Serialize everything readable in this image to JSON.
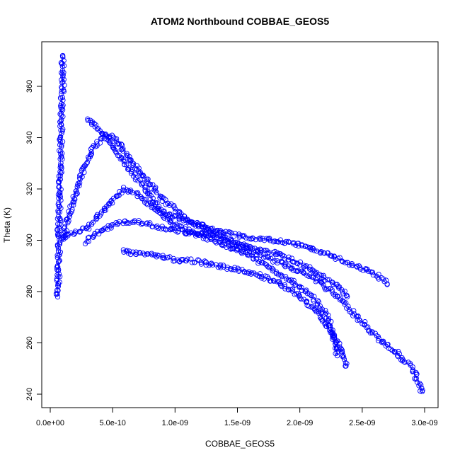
{
  "chart_data": {
    "type": "scatter",
    "title": "ATOM2 Northbound COBBAE_GEOS5",
    "xlabel": "COBBAE_GEOS5",
    "ylabel": "Theta (K)",
    "xlim": [
      0,
      3e-09
    ],
    "ylim": [
      236,
      373
    ],
    "x_ticks": [
      0,
      5e-10,
      1e-09,
      1.5e-09,
      2e-09,
      2.5e-09,
      3e-09
    ],
    "x_tick_labels": [
      "0.0e+00",
      "5.0e-10",
      "1.0e-09",
      "1.5e-09",
      "2.0e-09",
      "2.5e-09",
      "3.0e-09"
    ],
    "y_ticks": [
      240,
      260,
      280,
      300,
      320,
      340,
      360
    ],
    "y_tick_labels": [
      "240",
      "260",
      "280",
      "300",
      "320",
      "340",
      "360"
    ],
    "grid": false,
    "color": "#0000ff",
    "series": [
      {
        "x": [
          6e-11,
          6e-11,
          6.5e-11,
          6.5e-11,
          7e-11,
          6.5e-11,
          7e-11,
          7.5e-11,
          8e-11,
          8e-11,
          8.5e-11,
          9e-11,
          9e-11,
          1e-10,
          1e-10,
          1e-10
        ],
        "y": [
          278,
          282,
          286,
          290,
          294,
          298,
          305,
          312,
          320,
          328,
          336,
          344,
          352,
          360,
          366,
          372
        ]
      },
      {
        "x": [
          3e-10,
          3.3e-10,
          3.7e-10,
          4.1e-10,
          4.6e-10,
          5e-10,
          5.4e-10,
          5.8e-10,
          6.3e-10,
          6.8e-10,
          7.3e-10,
          7.8e-10,
          8.2e-10,
          8.6e-10,
          9e-10,
          9.6e-10,
          1.05e-09,
          1.15e-09,
          1.25e-09,
          1.35e-09,
          1.45e-09,
          1.55e-09,
          1.7e-09,
          1.85e-09,
          2e-09,
          2.15e-09,
          2.25e-09,
          2.35e-09,
          2.42e-09,
          2.5e-09,
          2.58e-09,
          2.65e-09,
          2.73e-09,
          2.82e-09,
          2.9e-09,
          2.95e-09,
          2.98e-09
        ],
        "y": [
          347,
          346,
          344,
          342,
          340,
          337,
          334,
          331,
          328,
          325,
          322,
          319,
          316,
          313,
          310,
          307,
          305,
          303,
          302,
          301,
          299,
          297,
          294,
          291,
          288,
          284,
          280,
          276,
          272,
          268,
          264,
          261,
          258,
          254,
          250,
          245,
          241
        ]
      },
      {
        "x": [
          1e-10,
          1.5e-10,
          2e-10,
          2.5e-10,
          3e-10,
          3.5e-10,
          4e-10,
          4.5e-10,
          5e-10,
          5.5e-10,
          6e-10,
          7e-10,
          8e-10,
          9e-10,
          1e-09,
          1.1e-09,
          1.2e-09,
          1.3e-09,
          1.4e-09,
          1.5e-09,
          1.6e-09,
          1.7e-09,
          1.8e-09,
          1.9e-09,
          2e-09,
          2.1e-09,
          2.2e-09,
          2.3e-09,
          2.35e-09,
          2.38e-09
        ],
        "y": [
          300,
          310,
          318,
          325,
          332,
          336,
          339,
          341,
          340,
          338,
          334,
          328,
          322,
          316,
          312,
          308,
          305,
          303,
          301,
          299,
          297,
          296,
          295,
          293,
          291,
          288,
          285,
          282,
          280,
          278
        ]
      },
      {
        "x": [
          2.8e-10,
          3.5e-10,
          4.2e-10,
          5e-10,
          6e-10,
          7e-10,
          8e-10,
          9e-10,
          1e-09,
          1.1e-09,
          1.2e-09,
          1.3e-09,
          1.4e-09,
          1.5e-09,
          1.6e-09,
          1.7e-09,
          1.8e-09,
          1.9e-09,
          2e-09,
          2.1e-09,
          2.2e-09,
          2.25e-09,
          2.28e-09,
          2.3e-09
        ],
        "y": [
          299,
          302,
          304,
          306,
          307,
          307,
          306,
          305,
          304,
          303,
          302,
          300,
          298,
          296,
          294,
          291,
          288,
          285,
          282,
          278,
          272,
          266,
          260,
          255
        ]
      },
      {
        "x": [
          5.8e-10,
          6.5e-10,
          7.5e-10,
          8.5e-10,
          9.5e-10,
          1.05e-09,
          1.15e-09,
          1.25e-09,
          1.35e-09,
          1.45e-09,
          1.55e-09,
          1.65e-09,
          1.75e-09,
          1.85e-09,
          1.95e-09,
          2.05e-09,
          2.15e-09,
          2.2e-09,
          2.25e-09,
          2.3e-09,
          2.35e-09,
          2.37e-09
        ],
        "y": [
          296,
          295,
          295,
          294,
          293,
          292,
          292,
          291,
          290,
          289,
          288,
          287,
          285,
          283,
          280,
          276,
          272,
          268,
          264,
          260,
          256,
          251
        ]
      },
      {
        "x": [
          1e-10,
          2e-10,
          3e-10,
          4e-10,
          5e-10,
          6e-10,
          7e-10,
          8e-10,
          9e-10,
          1e-09,
          1.2e-09,
          1.4e-09,
          1.6e-09,
          1.8e-09,
          2e-09,
          2.2e-09,
          2.4e-09,
          2.6e-09,
          2.7e-09
        ],
        "y": [
          301,
          303,
          305,
          310,
          316,
          320,
          318,
          314,
          311,
          309,
          306,
          303,
          301,
          300,
          298,
          295,
          291,
          287,
          283
        ]
      }
    ]
  }
}
